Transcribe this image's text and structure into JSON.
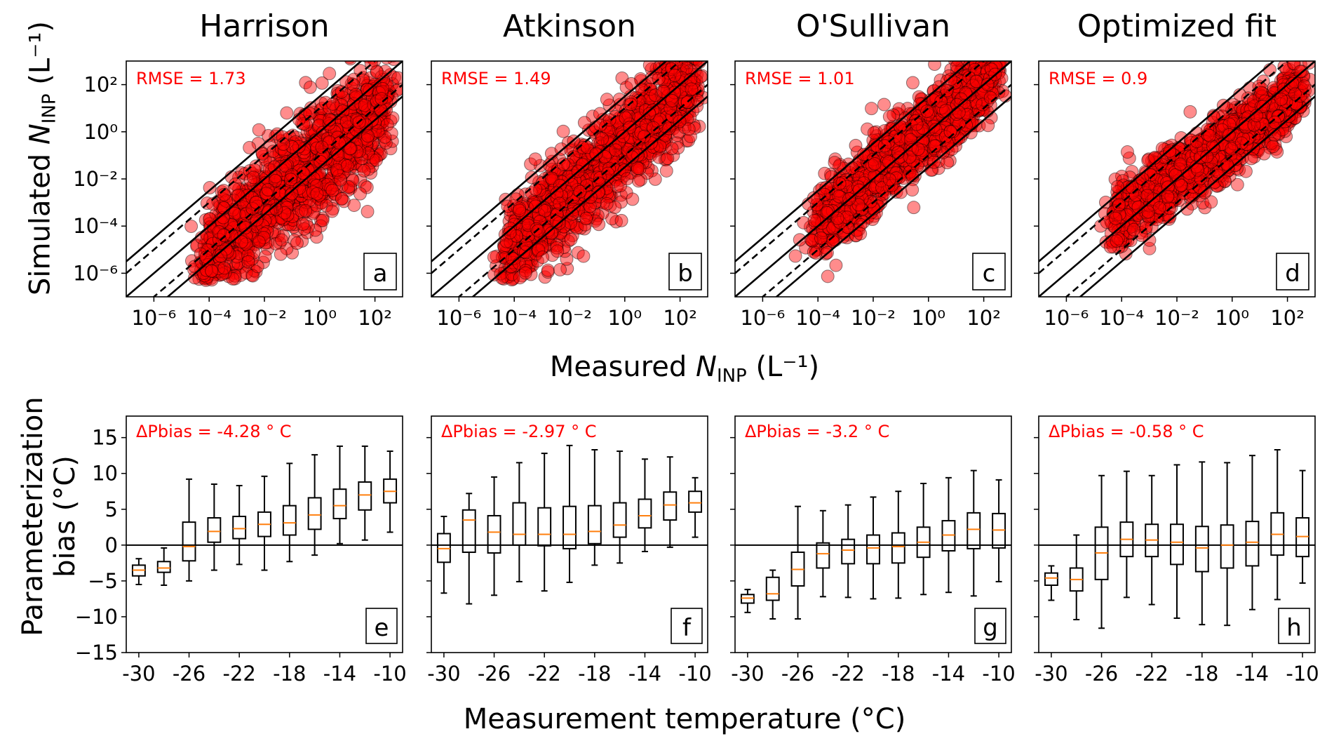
{
  "titles": [
    "Harrison",
    "Atkinson",
    "O'Sullivan",
    "Optimized fit"
  ],
  "top_ylabel": {
    "prefix": "Simulated ",
    "var": "N",
    "sub": "INP",
    "unit": " (L⁻¹)"
  },
  "top_xlabel": {
    "prefix": "Measured ",
    "var": "N",
    "sub": "INP",
    "unit": " (L⁻¹)"
  },
  "bottom_ylabel": {
    "line1": "Parameterization",
    "line2": "bias (°C)"
  },
  "bottom_xlabel": "Measurement temperature (°C)",
  "colors": {
    "points": "#ff0000",
    "median": "#ff7f0e",
    "annotation": "#ff0000"
  },
  "chart_data": [
    {
      "type": "scatter",
      "panels": [
        {
          "title": "Harrison",
          "letter": "a",
          "annotation": "RMSE = 1.73",
          "rmse": 1.73,
          "cloud": {
            "intercept": -1.2,
            "slope": 1.0,
            "spread": 1.15,
            "x_min": -4.3,
            "x_max": 2.4
          }
        },
        {
          "title": "Atkinson",
          "letter": "b",
          "annotation": "RMSE = 1.49",
          "rmse": 1.49,
          "cloud": {
            "intercept": -0.6,
            "slope": 1.05,
            "spread": 1.0,
            "x_min": -4.3,
            "x_max": 2.5
          }
        },
        {
          "title": "O'Sullivan",
          "letter": "c",
          "annotation": "RMSE = 1.01",
          "rmse": 1.01,
          "cloud": {
            "intercept": 0.1,
            "slope": 1.0,
            "spread": 0.8,
            "x_min": -4.2,
            "x_max": 2.4
          }
        },
        {
          "title": "Optimized fit",
          "letter": "d",
          "annotation": "RMSE = 0.9",
          "rmse": 0.9,
          "cloud": {
            "intercept": -0.3,
            "slope": 0.8,
            "spread": 0.7,
            "x_min": -4.3,
            "x_max": 2.4
          }
        }
      ],
      "xscale": "log",
      "yscale": "log",
      "xlim_log10": [
        -7,
        3
      ],
      "ylim_log10": [
        -7,
        3
      ],
      "xticks": [
        "10⁻⁶",
        "10⁻⁴",
        "10⁻²",
        "10⁰",
        "10²"
      ],
      "xtick_values_log10": [
        -6,
        -4,
        -2,
        0,
        2
      ],
      "yticks": [
        "10²",
        "10⁰",
        "10⁻²",
        "10⁻⁴",
        "10⁻⁶"
      ],
      "ytick_values_log10": [
        2,
        0,
        -2,
        -4,
        -6
      ],
      "reference_lines": [
        {
          "offset_log10": 0,
          "style": "solid"
        },
        {
          "offset_log10": 1,
          "style": "dashed"
        },
        {
          "offset_log10": -1,
          "style": "dashed"
        },
        {
          "offset_log10": 1.5,
          "style": "solid"
        },
        {
          "offset_log10": -1.5,
          "style": "solid"
        }
      ]
    },
    {
      "type": "box",
      "x": [
        -30,
        -28,
        -26,
        -24,
        -22,
        -20,
        -18,
        -16,
        -14,
        -12,
        -10
      ],
      "xticks": [
        "-30",
        "-26",
        "-22",
        "-18",
        "-14",
        "-10"
      ],
      "xtick_values": [
        -30,
        -26,
        -22,
        -18,
        -14,
        -10
      ],
      "yticks": [
        "15",
        "10",
        "5",
        "0",
        "−5",
        "−10",
        "−15"
      ],
      "ytick_values": [
        15,
        10,
        5,
        0,
        -5,
        -10,
        -15
      ],
      "xlim": [
        -31,
        -9
      ],
      "ylim": [
        -15,
        18
      ],
      "panels": [
        {
          "letter": "e",
          "annotation": "ΔPbias = -4.28 ° C",
          "pbias": -4.28,
          "whislo": [
            -5.5,
            -5.6,
            -5.0,
            -3.5,
            -2.7,
            -3.5,
            -2.3,
            -1.4,
            0.2,
            0.7,
            1.8
          ],
          "q1": [
            -4.3,
            -3.8,
            -2.2,
            0.4,
            0.9,
            1.2,
            1.4,
            2.2,
            3.7,
            4.9,
            5.9
          ],
          "med": [
            -3.5,
            -3.2,
            -0.2,
            1.9,
            2.3,
            2.9,
            3.1,
            4.2,
            5.5,
            7.0,
            7.5
          ],
          "q3": [
            -2.8,
            -2.3,
            3.2,
            3.8,
            4.0,
            4.6,
            5.5,
            6.6,
            7.8,
            8.8,
            9.2
          ],
          "whishi": [
            -1.9,
            -0.4,
            9.2,
            8.5,
            8.3,
            9.6,
            11.4,
            12.6,
            13.8,
            13.8,
            13.1
          ]
        },
        {
          "letter": "f",
          "annotation": "ΔPbias = -2.97 ° C",
          "pbias": -2.97,
          "whislo": [
            -6.7,
            -8.2,
            -7.0,
            -5.1,
            -6.4,
            -5.2,
            -2.8,
            -2.5,
            -0.9,
            -0.3,
            1.1
          ],
          "q1": [
            -2.4,
            -1.0,
            -1.1,
            0.0,
            -0.1,
            -0.5,
            0.2,
            1.1,
            2.4,
            3.5,
            4.6
          ],
          "med": [
            -0.5,
            3.5,
            1.8,
            1.5,
            1.5,
            1.5,
            1.9,
            2.8,
            4.1,
            5.6,
            5.9
          ],
          "q3": [
            1.6,
            4.9,
            4.1,
            5.9,
            5.2,
            5.4,
            5.5,
            5.9,
            6.4,
            7.4,
            7.5
          ],
          "whishi": [
            4.0,
            7.2,
            9.5,
            11.5,
            12.8,
            13.9,
            13.3,
            13.1,
            12.0,
            12.3,
            9.4
          ]
        },
        {
          "letter": "g",
          "annotation": "ΔPbias = -3.2 ° C",
          "pbias": -3.2,
          "whislo": [
            -9.4,
            -10.3,
            -10.3,
            -7.2,
            -7.3,
            -7.5,
            -7.4,
            -6.9,
            -6.6,
            -7.1,
            -5.1
          ],
          "q1": [
            -8.1,
            -7.7,
            -5.7,
            -3.2,
            -2.6,
            -2.6,
            -2.5,
            -1.7,
            -0.8,
            -0.5,
            -0.4
          ],
          "med": [
            -7.4,
            -6.8,
            -3.4,
            -1.2,
            -0.7,
            -0.4,
            -0.2,
            0.4,
            1.4,
            2.2,
            2.1
          ],
          "q3": [
            -6.9,
            -4.5,
            -1.0,
            0.3,
            0.8,
            1.4,
            1.7,
            2.5,
            3.4,
            4.5,
            4.4
          ],
          "whishi": [
            -6.2,
            -3.5,
            5.4,
            4.8,
            5.6,
            6.7,
            7.5,
            8.6,
            9.4,
            10.4,
            9.1
          ]
        },
        {
          "letter": "h",
          "annotation": "ΔPbias = -0.58 ° C",
          "pbias": -0.58,
          "whislo": [
            -7.7,
            -10.4,
            -11.6,
            -7.3,
            -8.3,
            -10.2,
            -11.1,
            -11.2,
            -9.0,
            -7.6,
            -5.3
          ],
          "q1": [
            -5.6,
            -6.4,
            -4.8,
            -1.6,
            -1.6,
            -2.7,
            -3.7,
            -3.2,
            -2.9,
            -1.4,
            -1.6
          ],
          "med": [
            -4.6,
            -4.8,
            -1.1,
            0.8,
            0.7,
            0.4,
            -0.4,
            0.0,
            0.4,
            1.5,
            1.2
          ],
          "q3": [
            -3.9,
            -3.2,
            2.5,
            3.2,
            2.9,
            2.9,
            2.6,
            2.8,
            3.3,
            4.5,
            3.8
          ],
          "whishi": [
            -2.9,
            1.4,
            9.7,
            10.3,
            9.7,
            11.2,
            11.6,
            11.5,
            12.5,
            13.3,
            10.4
          ]
        }
      ]
    }
  ]
}
